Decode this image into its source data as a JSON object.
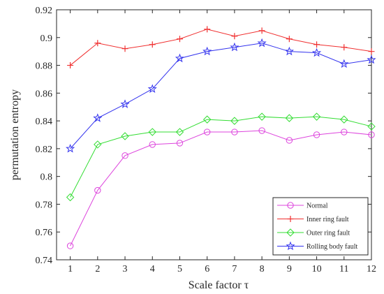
{
  "chart_data": {
    "type": "line",
    "xlabel": "Scale factor τ",
    "ylabel": "permutation entropy",
    "x": [
      1,
      2,
      3,
      4,
      5,
      6,
      7,
      8,
      9,
      10,
      11,
      12
    ],
    "xlim": [
      0.5,
      12
    ],
    "ylim": [
      0.74,
      0.92
    ],
    "yticks": [
      0.74,
      0.76,
      0.78,
      0.8,
      0.82,
      0.84,
      0.86,
      0.88,
      0.9,
      0.92
    ],
    "ytick_labels": [
      "0.74",
      "0.76",
      "0.78",
      "0.8",
      "0.82",
      "0.84",
      "0.86",
      "0.88",
      "0.9",
      "0.92"
    ],
    "legend_position": "bottom-right",
    "grid": false,
    "series": [
      {
        "name": "Normal",
        "color": "#dd44dd",
        "marker": "circle",
        "values": [
          0.75,
          0.79,
          0.815,
          0.823,
          0.824,
          0.832,
          0.832,
          0.833,
          0.826,
          0.83,
          0.832,
          0.83
        ]
      },
      {
        "name": "Inner ring fault",
        "color": "#f03030",
        "marker": "plus",
        "values": [
          0.88,
          0.896,
          0.892,
          0.895,
          0.899,
          0.906,
          0.901,
          0.905,
          0.899,
          0.895,
          0.893,
          0.89
        ]
      },
      {
        "name": "Outer ring fault",
        "color": "#33dd33",
        "marker": "diamond",
        "values": [
          0.785,
          0.823,
          0.829,
          0.832,
          0.832,
          0.841,
          0.84,
          0.843,
          0.842,
          0.843,
          0.841,
          0.836
        ]
      },
      {
        "name": "Rolling body fault",
        "color": "#3333ee",
        "marker": "star",
        "values": [
          0.82,
          0.842,
          0.852,
          0.863,
          0.885,
          0.89,
          0.893,
          0.896,
          0.89,
          0.889,
          0.881,
          0.884
        ]
      }
    ]
  }
}
